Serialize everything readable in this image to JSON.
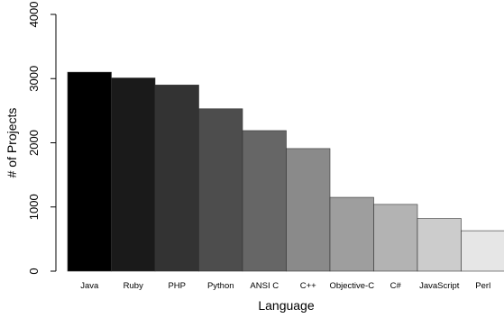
{
  "chart_data": {
    "type": "bar",
    "title": "",
    "xlabel": "Language",
    "ylabel": "# of Projects",
    "ylim": [
      0,
      4000
    ],
    "yticks": [
      0,
      1000,
      2000,
      3000,
      4000
    ],
    "grid": false,
    "categories": [
      "Java",
      "Ruby",
      "PHP",
      "Python",
      "ANSI C",
      "C++",
      "Objective-C",
      "C#",
      "JavaScript",
      "Perl"
    ],
    "values": [
      3100,
      3010,
      2900,
      2530,
      2190,
      1910,
      1150,
      1040,
      820,
      630
    ],
    "colors": [
      "#000000",
      "#1a1a1a",
      "#333333",
      "#4d4d4d",
      "#666666",
      "#8a8a8a",
      "#9e9e9e",
      "#b3b3b3",
      "#cccccc",
      "#e6e6e6"
    ]
  }
}
